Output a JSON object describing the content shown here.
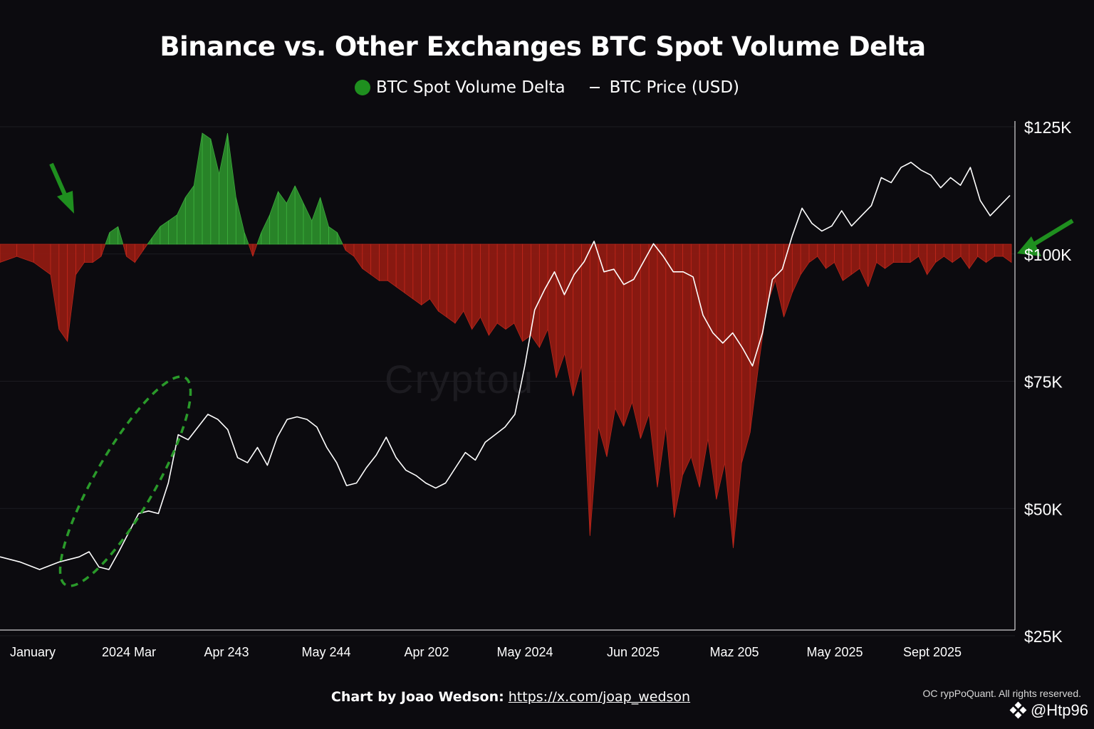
{
  "chart_data": {
    "type": "area",
    "title": "Binance vs. Other Exchanges BTC Spot Volume Delta",
    "legend": [
      {
        "label": "BTC Spot Volume Delta",
        "color": "#1f8f1f",
        "marker": "dot"
      },
      {
        "label": "BTC Price (USD)",
        "color": "#ffffff",
        "marker": "line"
      }
    ],
    "y_axis": {
      "side": "right",
      "ticks": [
        "$125K",
        "$100K",
        "$75K",
        "$50K",
        "$25K"
      ],
      "tick_values": [
        125000,
        100000,
        75000,
        50000,
        25000
      ],
      "ylim": [
        25000,
        125000
      ]
    },
    "x_axis": {
      "ticks": [
        "January",
        "2024 Mar",
        "Apr 243",
        "May 244",
        "Apr 202",
        "May 2024",
        "Jun 2025",
        "Maz 205",
        "May 2025",
        "Sept 2025"
      ]
    },
    "delta_ylim": [
      -60,
      19
    ],
    "series": [
      {
        "name": "BTC Spot Volume Delta",
        "unit": "relative",
        "positive_color": "#2a8a2a",
        "negative_color": "#8f1a12",
        "points": [
          [
            0,
            -3
          ],
          [
            2,
            -2
          ],
          [
            4,
            -3
          ],
          [
            6,
            -5
          ],
          [
            7,
            -14
          ],
          [
            8,
            -16
          ],
          [
            9,
            -5
          ],
          [
            10,
            -3
          ],
          [
            11,
            -3
          ],
          [
            12,
            -2
          ],
          [
            13,
            2
          ],
          [
            14,
            3
          ],
          [
            15,
            -2
          ],
          [
            16,
            -3
          ],
          [
            17,
            -1
          ],
          [
            18,
            1
          ],
          [
            19,
            3
          ],
          [
            20,
            4
          ],
          [
            21,
            5
          ],
          [
            22,
            8
          ],
          [
            23,
            10
          ],
          [
            24,
            19
          ],
          [
            25,
            18
          ],
          [
            26,
            12
          ],
          [
            27,
            19
          ],
          [
            28,
            8
          ],
          [
            29,
            2
          ],
          [
            30,
            -2
          ],
          [
            31,
            2
          ],
          [
            32,
            5
          ],
          [
            33,
            9
          ],
          [
            34,
            7
          ],
          [
            35,
            10
          ],
          [
            36,
            7
          ],
          [
            37,
            4
          ],
          [
            38,
            8
          ],
          [
            39,
            3
          ],
          [
            40,
            2
          ],
          [
            41,
            -1
          ],
          [
            42,
            -2
          ],
          [
            43,
            -4
          ],
          [
            44,
            -5
          ],
          [
            45,
            -6
          ],
          [
            46,
            -6
          ],
          [
            47,
            -7
          ],
          [
            48,
            -8
          ],
          [
            49,
            -9
          ],
          [
            50,
            -10
          ],
          [
            51,
            -9
          ],
          [
            52,
            -11
          ],
          [
            53,
            -12
          ],
          [
            54,
            -13
          ],
          [
            55,
            -11
          ],
          [
            56,
            -14
          ],
          [
            57,
            -12
          ],
          [
            58,
            -15
          ],
          [
            59,
            -13
          ],
          [
            60,
            -14
          ],
          [
            61,
            -13
          ],
          [
            62,
            -16
          ],
          [
            63,
            -15
          ],
          [
            64,
            -17
          ],
          [
            65,
            -14
          ],
          [
            66,
            -22
          ],
          [
            67,
            -18
          ],
          [
            68,
            -25
          ],
          [
            69,
            -20
          ],
          [
            70,
            -48
          ],
          [
            71,
            -30
          ],
          [
            72,
            -35
          ],
          [
            73,
            -27
          ],
          [
            74,
            -30
          ],
          [
            75,
            -26
          ],
          [
            76,
            -32
          ],
          [
            77,
            -28
          ],
          [
            78,
            -40
          ],
          [
            79,
            -30
          ],
          [
            80,
            -45
          ],
          [
            81,
            -38
          ],
          [
            82,
            -35
          ],
          [
            83,
            -40
          ],
          [
            84,
            -32
          ],
          [
            85,
            -42
          ],
          [
            86,
            -36
          ],
          [
            87,
            -50
          ],
          [
            88,
            -36
          ],
          [
            89,
            -31
          ],
          [
            90,
            -20
          ],
          [
            91,
            -10
          ],
          [
            92,
            -6
          ],
          [
            93,
            -12
          ],
          [
            94,
            -8
          ],
          [
            95,
            -5
          ],
          [
            96,
            -3
          ],
          [
            97,
            -2
          ],
          [
            98,
            -4
          ],
          [
            99,
            -3
          ],
          [
            100,
            -6
          ],
          [
            101,
            -5
          ],
          [
            102,
            -4
          ],
          [
            103,
            -7
          ],
          [
            104,
            -3
          ],
          [
            105,
            -4
          ],
          [
            106,
            -3
          ],
          [
            107,
            -3
          ],
          [
            108,
            -3
          ],
          [
            109,
            -2
          ],
          [
            110,
            -5
          ],
          [
            111,
            -3
          ],
          [
            112,
            -2
          ],
          [
            113,
            -3
          ],
          [
            114,
            -2
          ],
          [
            115,
            -4
          ],
          [
            116,
            -2
          ],
          [
            117,
            -3
          ],
          [
            118,
            -2
          ],
          [
            119,
            -2
          ],
          [
            120,
            -3
          ]
        ]
      },
      {
        "name": "BTC Price (USD)",
        "unit": "USD",
        "color": "#ffffff",
        "points": [
          [
            0,
            40500
          ],
          [
            2,
            39500
          ],
          [
            4,
            38000
          ],
          [
            6,
            39500
          ],
          [
            8,
            40500
          ],
          [
            9,
            41500
          ],
          [
            10,
            38500
          ],
          [
            11,
            38000
          ],
          [
            12,
            41500
          ],
          [
            14,
            49000
          ],
          [
            15,
            49500
          ],
          [
            16,
            49000
          ],
          [
            17,
            55000
          ],
          [
            18,
            64500
          ],
          [
            19,
            63500
          ],
          [
            20,
            66000
          ],
          [
            21,
            68500
          ],
          [
            22,
            67500
          ],
          [
            23,
            65500
          ],
          [
            24,
            60000
          ],
          [
            25,
            59000
          ],
          [
            26,
            62000
          ],
          [
            27,
            58500
          ],
          [
            28,
            64000
          ],
          [
            29,
            67500
          ],
          [
            30,
            68000
          ],
          [
            31,
            67500
          ],
          [
            32,
            66000
          ],
          [
            33,
            62000
          ],
          [
            34,
            59000
          ],
          [
            35,
            54500
          ],
          [
            36,
            55000
          ],
          [
            37,
            58000
          ],
          [
            38,
            60500
          ],
          [
            39,
            64000
          ],
          [
            40,
            60000
          ],
          [
            41,
            57500
          ],
          [
            42,
            56500
          ],
          [
            43,
            55000
          ],
          [
            44,
            54000
          ],
          [
            45,
            55000
          ],
          [
            46,
            58000
          ],
          [
            47,
            61000
          ],
          [
            48,
            59500
          ],
          [
            49,
            63000
          ],
          [
            50,
            64500
          ],
          [
            51,
            66000
          ],
          [
            52,
            68500
          ],
          [
            53,
            78000
          ],
          [
            54,
            89000
          ],
          [
            55,
            93000
          ],
          [
            56,
            96500
          ],
          [
            57,
            92000
          ],
          [
            58,
            96000
          ],
          [
            59,
            98500
          ],
          [
            60,
            102500
          ],
          [
            61,
            96500
          ],
          [
            62,
            97000
          ],
          [
            63,
            94000
          ],
          [
            64,
            95000
          ],
          [
            65,
            98500
          ],
          [
            66,
            102000
          ],
          [
            67,
            99500
          ],
          [
            68,
            96500
          ],
          [
            69,
            96500
          ],
          [
            70,
            95500
          ],
          [
            71,
            88000
          ],
          [
            72,
            84500
          ],
          [
            73,
            82500
          ],
          [
            74,
            84500
          ],
          [
            75,
            81500
          ],
          [
            76,
            78000
          ],
          [
            77,
            84500
          ],
          [
            78,
            95000
          ],
          [
            79,
            97000
          ],
          [
            80,
            103500
          ],
          [
            81,
            109000
          ],
          [
            82,
            106000
          ],
          [
            83,
            104500
          ],
          [
            84,
            105500
          ],
          [
            85,
            108500
          ],
          [
            86,
            105500
          ],
          [
            87,
            107500
          ],
          [
            88,
            109500
          ],
          [
            89,
            115000
          ],
          [
            90,
            114000
          ],
          [
            91,
            117000
          ],
          [
            92,
            118000
          ],
          [
            93,
            116500
          ],
          [
            94,
            115500
          ],
          [
            95,
            113000
          ],
          [
            96,
            115000
          ],
          [
            97,
            113500
          ],
          [
            98,
            117000
          ],
          [
            99,
            110500
          ],
          [
            100,
            107500
          ],
          [
            101,
            109500
          ],
          [
            102,
            111500
          ]
        ]
      }
    ]
  },
  "watermark_text": "Cryptou",
  "footer": {
    "credit_label": "Chart by Joao Wedson:",
    "credit_link": "https://x.com/joap_wedson",
    "copyright": "OC rypPoQuant. All rights reserved.",
    "handle": "@Htp96"
  }
}
